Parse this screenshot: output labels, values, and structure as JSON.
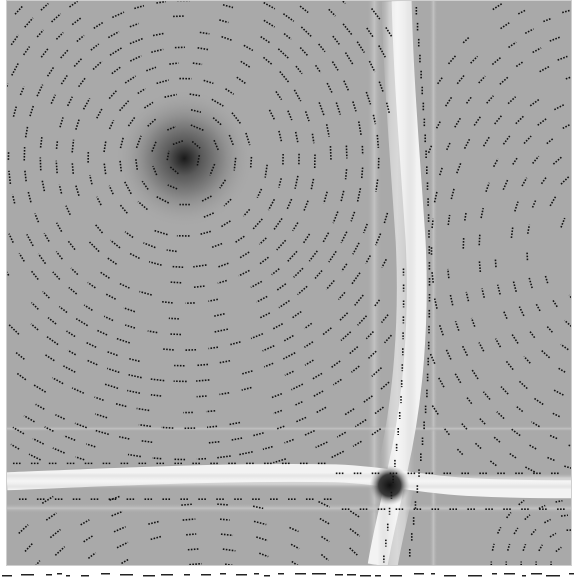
{
  "figure": {
    "kind": "vector-field-visualization",
    "background_color": "#a9a9a9",
    "band_color": "#f4f4f4",
    "dot_color": "#111111",
    "vortex_color": "#111111"
  },
  "caption": {
    "text": ""
  }
}
